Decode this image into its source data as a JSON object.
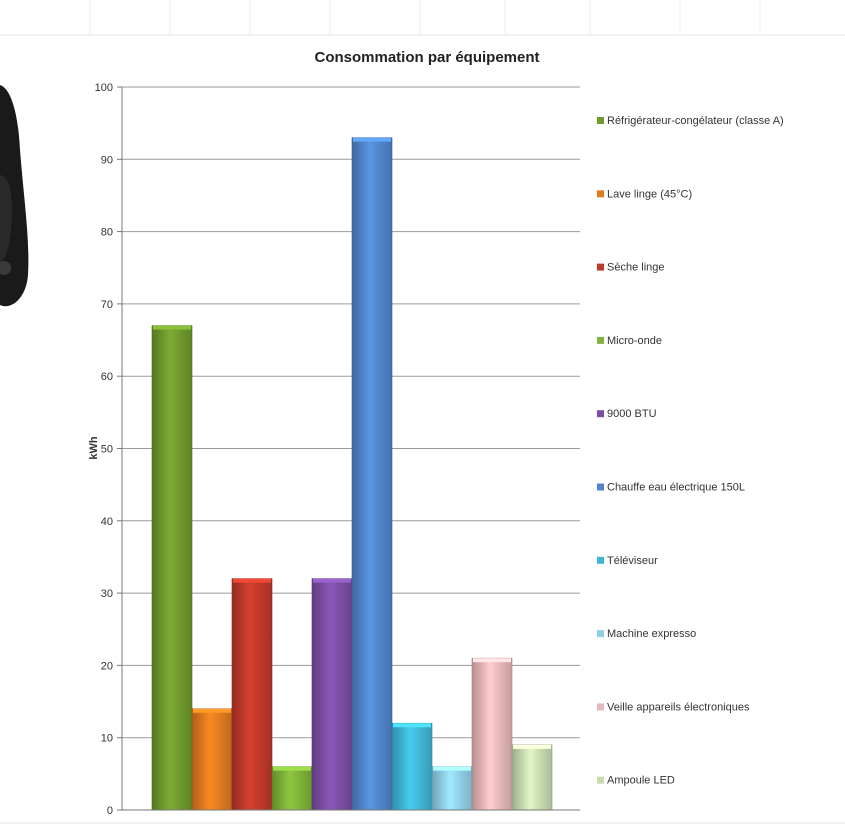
{
  "chart_data": {
    "type": "bar",
    "title": "Consommation par équipement",
    "xlabel": "",
    "ylabel": "kWh",
    "ylim": [
      0,
      100
    ],
    "yticks": [
      0,
      10,
      20,
      30,
      40,
      50,
      60,
      70,
      80,
      90,
      100
    ],
    "grid": true,
    "legend_position": "right",
    "categories": [
      "Réfrigérateur-congélateur (classe A)",
      "Lave linge (45°C)",
      "Sèche linge",
      "Micro-onde",
      "9000 BTU",
      "Chauffe eau électrique 150L",
      "Téléviseur",
      "Machine expresso",
      "Veille appareils électroniques",
      "Ampoule LED"
    ],
    "values": [
      67,
      14,
      32,
      6,
      32,
      93,
      12,
      6,
      21,
      9
    ],
    "colors": [
      "#6f9a2e",
      "#e07a20",
      "#c0392b",
      "#7fb23a",
      "#7b4ea3",
      "#4f86cc",
      "#3fb6d6",
      "#8fd0e8",
      "#e8b7b9",
      "#c8dcb0"
    ]
  }
}
